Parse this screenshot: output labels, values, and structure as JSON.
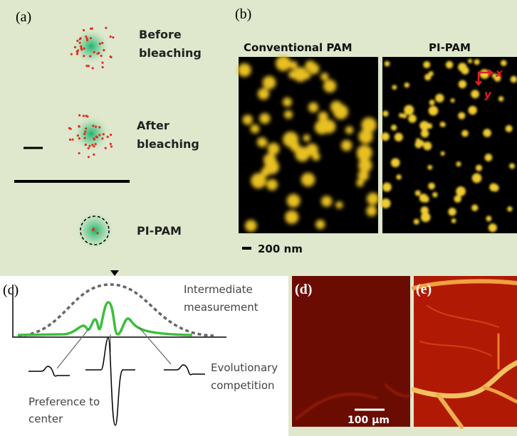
{
  "panel_a": {
    "label": "(a)",
    "before_bleaching": [
      "Before",
      "bleaching"
    ],
    "after_bleaching": [
      "After",
      "bleaching"
    ],
    "pi_pam": "PI-PAM"
  },
  "panel_b": {
    "label": "(b)",
    "left_title": "Conventional PAM",
    "right_title": "PI-PAM",
    "axis_x": "x",
    "axis_y": "y",
    "scale_bar": "200 nm"
  },
  "panel_c": {
    "label": "(c)",
    "intermediate": [
      "Intermediate",
      "measurement"
    ],
    "evolutionary": [
      "Evolutionary",
      "competition"
    ],
    "preference": [
      "Preference to",
      "center"
    ]
  },
  "panel_d": {
    "label": "(d)",
    "scale_bar": "100 µm"
  },
  "panel_e": {
    "label": "(e)"
  }
}
